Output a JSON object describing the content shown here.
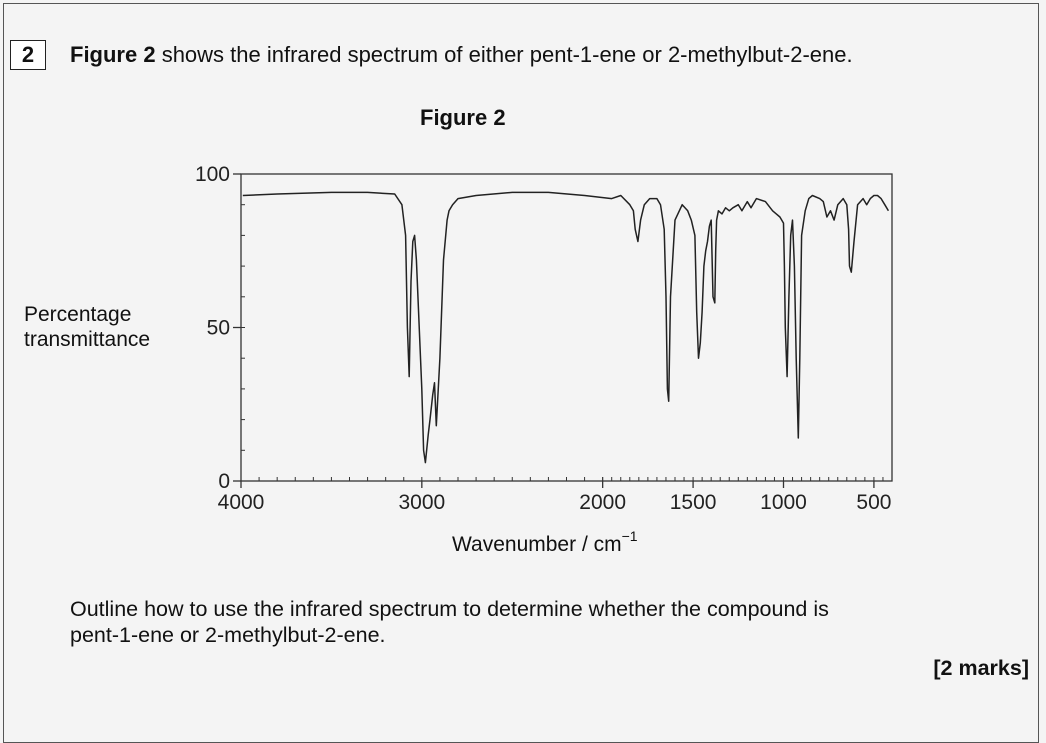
{
  "question": {
    "number": "2",
    "figure_ref": "Figure 2",
    "text_after": " shows the infrared spectrum of either pent-1-ene or 2-methylbut-2-ene.",
    "outline_line1": "Outline how to use the infrared spectrum to determine whether the compound is",
    "outline_line2": "pent-1-ene or 2-methylbut-2-ene.",
    "marks": "[2 marks]"
  },
  "chart_data": {
    "type": "line",
    "title": "Figure 2",
    "ylabel_line1": "Percentage",
    "ylabel_line2": "transmittance",
    "xlabel_main": "Wavenumber / cm",
    "xlabel_sup": "−1",
    "xlim": [
      4000,
      400
    ],
    "ylim": [
      0,
      100
    ],
    "x_ticks": [
      4000,
      3000,
      2000,
      1500,
      1000,
      500
    ],
    "x_tick_labels": [
      "4000",
      "3000",
      "2000",
      "1500",
      "1000",
      "500"
    ],
    "y_ticks": [
      0,
      50,
      100
    ],
    "y_tick_labels": [
      "0",
      "50",
      "100"
    ],
    "grid": false,
    "series": [
      {
        "x": [
          3990,
          3800,
          3500,
          3300,
          3150,
          3110,
          3090,
          3080,
          3070,
          3060,
          3050,
          3040,
          3030,
          3000,
          2990,
          2980,
          2965,
          2955,
          2940,
          2930,
          2920,
          2900,
          2880,
          2860,
          2850,
          2830,
          2800,
          2700,
          2500,
          2300,
          2100,
          1950,
          1900,
          1850,
          1830,
          1820,
          1805,
          1790,
          1770,
          1740,
          1700,
          1680,
          1660,
          1650,
          1642,
          1635,
          1625,
          1600,
          1560,
          1530,
          1510,
          1490,
          1480,
          1470,
          1460,
          1450,
          1440,
          1430,
          1420,
          1410,
          1400,
          1390,
          1380,
          1375,
          1370,
          1360,
          1340,
          1320,
          1300,
          1280,
          1250,
          1230,
          1200,
          1180,
          1150,
          1100,
          1060,
          1040,
          1020,
          1000,
          995,
          990,
          980,
          970,
          960,
          950,
          940,
          930,
          918,
          910,
          900,
          880,
          860,
          840,
          800,
          780,
          760,
          740,
          720,
          700,
          670,
          650,
          640,
          635,
          625,
          610,
          590,
          560,
          540,
          520,
          500,
          480,
          460,
          440,
          420
        ],
        "y": [
          93,
          93.5,
          94,
          94,
          93.5,
          90,
          80,
          50,
          34,
          65,
          78,
          80,
          72,
          30,
          10,
          6,
          15,
          20,
          28,
          32,
          18,
          40,
          72,
          85,
          88,
          90,
          92,
          93,
          94,
          94,
          93,
          92,
          93,
          90,
          88,
          82,
          78,
          85,
          90,
          92,
          92,
          90,
          82,
          60,
          30,
          26,
          60,
          85,
          90,
          88,
          85,
          80,
          55,
          40,
          45,
          55,
          70,
          75,
          78,
          83,
          85,
          60,
          58,
          75,
          85,
          88,
          87,
          89,
          88,
          89,
          90,
          88,
          91,
          89,
          92,
          91,
          88,
          87,
          86,
          84,
          70,
          50,
          34,
          60,
          80,
          85,
          70,
          40,
          14,
          40,
          80,
          88,
          92,
          93,
          92,
          91,
          86,
          88,
          85,
          90,
          92,
          90,
          82,
          70,
          68,
          78,
          90,
          92,
          90,
          92,
          93,
          93,
          92,
          90,
          88
        ]
      }
    ]
  }
}
